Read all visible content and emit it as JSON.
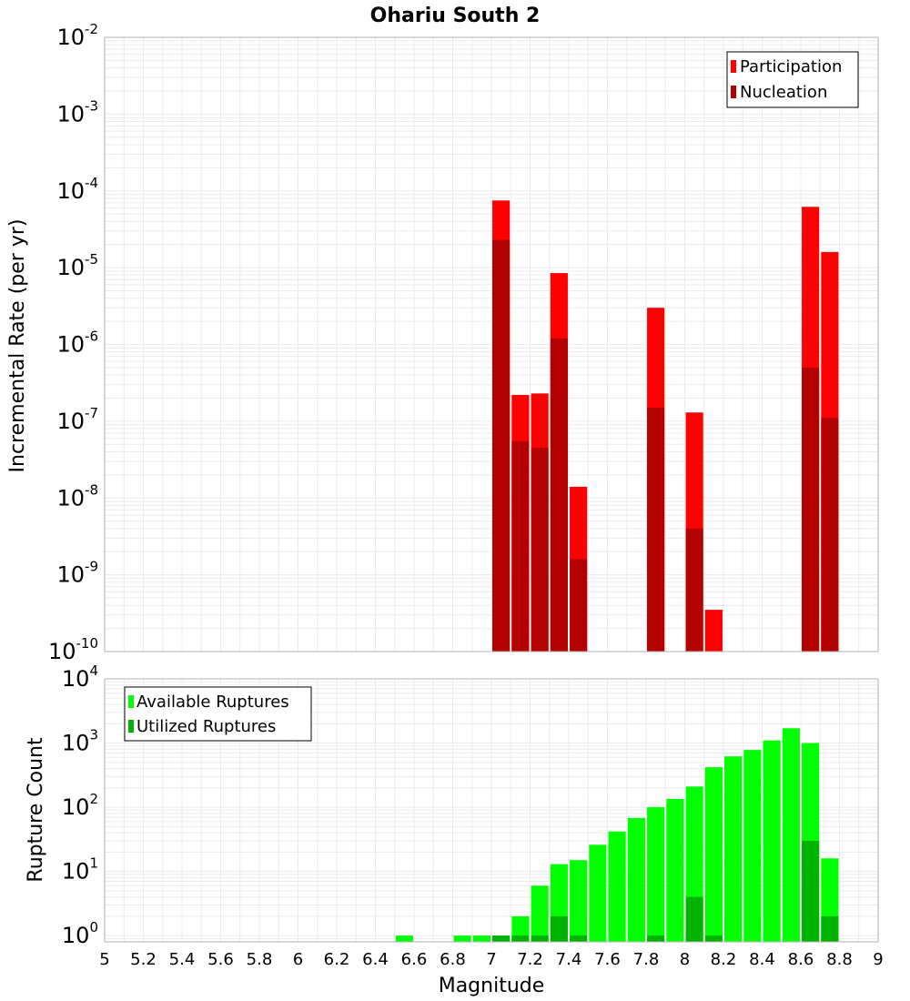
{
  "chart_data": [
    {
      "type": "bar",
      "title": "Ohariu South 2",
      "ylabel": "Incremental Rate (per yr)",
      "xlabel": "",
      "yscale": "log",
      "ylim": [
        1e-10,
        0.01
      ],
      "xlim": [
        5,
        9
      ],
      "grid": true,
      "legend_position": "top-right",
      "series": [
        {
          "name": "Participation",
          "color": "#ff0000",
          "x": [
            7.05,
            7.15,
            7.25,
            7.35,
            7.45,
            7.85,
            8.05,
            8.15,
            8.65,
            8.75
          ],
          "values": [
            7.5e-05,
            2.2e-07,
            2.3e-07,
            8.5e-06,
            1.4e-08,
            3e-06,
            1.3e-07,
            3.5e-10,
            6.2e-05,
            1.6e-05
          ]
        },
        {
          "name": "Nucleation",
          "color": "#b30000",
          "x": [
            7.05,
            7.15,
            7.25,
            7.35,
            7.45,
            7.85,
            8.05,
            8.15,
            8.65,
            8.75
          ],
          "values": [
            2.3e-05,
            5.5e-08,
            4.5e-08,
            1.2e-06,
            1.6e-09,
            1.5e-07,
            4e-09,
            1e-10,
            5e-07,
            1.1e-07
          ]
        }
      ],
      "yticks": [
        {
          "base": "10",
          "exp": "-10",
          "value": 1e-10
        },
        {
          "base": "10",
          "exp": "-9",
          "value": 1e-09
        },
        {
          "base": "10",
          "exp": "-8",
          "value": 1e-08
        },
        {
          "base": "10",
          "exp": "-7",
          "value": 1e-07
        },
        {
          "base": "10",
          "exp": "-6",
          "value": 1e-06
        },
        {
          "base": "10",
          "exp": "-5",
          "value": 1e-05
        },
        {
          "base": "10",
          "exp": "-4",
          "value": 0.0001
        },
        {
          "base": "10",
          "exp": "-3",
          "value": 0.001
        },
        {
          "base": "10",
          "exp": "-2",
          "value": 0.01
        }
      ]
    },
    {
      "type": "bar",
      "ylabel": "Rupture Count",
      "xlabel": "Magnitude",
      "yscale": "log",
      "ylim": [
        0.8,
        10000
      ],
      "xlim": [
        5,
        9
      ],
      "grid": true,
      "legend_position": "top-left",
      "series": [
        {
          "name": "Available Ruptures",
          "color": "#00ff00",
          "x": [
            6.55,
            6.85,
            6.95,
            7.05,
            7.15,
            7.25,
            7.35,
            7.45,
            7.55,
            7.65,
            7.75,
            7.85,
            7.95,
            8.05,
            8.15,
            8.25,
            8.35,
            8.45,
            8.55,
            8.65,
            8.75
          ],
          "values": [
            1,
            1,
            1,
            1,
            2,
            6,
            13,
            15,
            26,
            42,
            68,
            100,
            135,
            210,
            420,
            620,
            780,
            1100,
            1700,
            1000,
            16
          ]
        },
        {
          "name": "Utilized Ruptures",
          "color": "#00b300",
          "x": [
            7.05,
            7.15,
            7.25,
            7.35,
            7.45,
            7.85,
            8.05,
            8.15,
            8.65,
            8.75
          ],
          "values": [
            1,
            1,
            1,
            2,
            1,
            1,
            4,
            1,
            30,
            2
          ]
        }
      ],
      "xticks": [
        "5",
        "5.2",
        "5.4",
        "5.6",
        "5.8",
        "6",
        "6.2",
        "6.4",
        "6.6",
        "6.8",
        "7",
        "7.2",
        "7.4",
        "7.6",
        "7.8",
        "8",
        "8.2",
        "8.4",
        "8.6",
        "8.8",
        "9"
      ],
      "yticks": [
        {
          "base": "10",
          "exp": "0",
          "value": 1
        },
        {
          "base": "10",
          "exp": "1",
          "value": 10
        },
        {
          "base": "10",
          "exp": "2",
          "value": 100
        },
        {
          "base": "10",
          "exp": "3",
          "value": 1000
        },
        {
          "base": "10",
          "exp": "4",
          "value": 10000
        }
      ]
    }
  ]
}
